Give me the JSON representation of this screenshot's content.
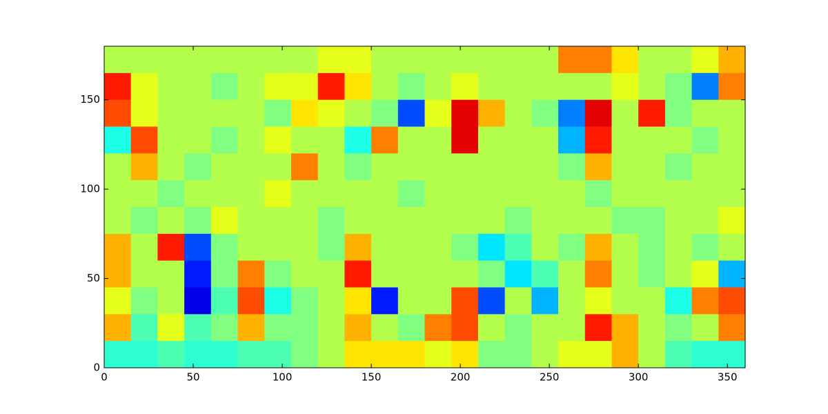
{
  "chart_data": {
    "type": "heatmap",
    "colormap": "jet",
    "clim": [
      0,
      1
    ],
    "xlim": [
      0,
      360
    ],
    "ylim": [
      0,
      180
    ],
    "xticks": [
      0,
      50,
      100,
      150,
      200,
      250,
      300,
      350
    ],
    "yticks": [
      0,
      50,
      100,
      150
    ],
    "values": [
      [
        0.55,
        0.55,
        0.55,
        0.55,
        0.55,
        0.55,
        0.55,
        0.55,
        0.6,
        0.6,
        0.55,
        0.55,
        0.55,
        0.55,
        0.55,
        0.55,
        0.55,
        0.75,
        0.75,
        0.65,
        0.55,
        0.55,
        0.6,
        0.7
      ],
      [
        0.85,
        0.6,
        0.55,
        0.55,
        0.5,
        0.55,
        0.6,
        0.6,
        0.85,
        0.65,
        0.55,
        0.5,
        0.55,
        0.6,
        0.55,
        0.55,
        0.55,
        0.55,
        0.55,
        0.6,
        0.55,
        0.5,
        0.25,
        0.75
      ],
      [
        0.8,
        0.6,
        0.55,
        0.55,
        0.55,
        0.55,
        0.5,
        0.65,
        0.6,
        0.55,
        0.5,
        0.2,
        0.6,
        0.9,
        0.7,
        0.55,
        0.5,
        0.25,
        0.9,
        0.55,
        0.85,
        0.5,
        0.55,
        0.55
      ],
      [
        0.4,
        0.8,
        0.55,
        0.55,
        0.5,
        0.55,
        0.6,
        0.55,
        0.55,
        0.4,
        0.75,
        0.55,
        0.55,
        0.9,
        0.55,
        0.55,
        0.55,
        0.3,
        0.85,
        0.55,
        0.55,
        0.55,
        0.5,
        0.55
      ],
      [
        0.55,
        0.7,
        0.55,
        0.5,
        0.55,
        0.55,
        0.55,
        0.75,
        0.55,
        0.5,
        0.55,
        0.55,
        0.55,
        0.55,
        0.55,
        0.55,
        0.55,
        0.5,
        0.7,
        0.55,
        0.55,
        0.5,
        0.55,
        0.55
      ],
      [
        0.55,
        0.55,
        0.5,
        0.55,
        0.55,
        0.55,
        0.6,
        0.55,
        0.55,
        0.55,
        0.55,
        0.5,
        0.55,
        0.55,
        0.55,
        0.55,
        0.55,
        0.55,
        0.5,
        0.55,
        0.55,
        0.55,
        0.55,
        0.55
      ],
      [
        0.55,
        0.5,
        0.55,
        0.5,
        0.6,
        0.55,
        0.55,
        0.55,
        0.5,
        0.55,
        0.55,
        0.55,
        0.55,
        0.55,
        0.55,
        0.5,
        0.55,
        0.55,
        0.55,
        0.5,
        0.5,
        0.55,
        0.55,
        0.6
      ],
      [
        0.7,
        0.55,
        0.85,
        0.2,
        0.5,
        0.55,
        0.55,
        0.55,
        0.5,
        0.7,
        0.55,
        0.55,
        0.55,
        0.5,
        0.35,
        0.45,
        0.55,
        0.5,
        0.7,
        0.55,
        0.5,
        0.55,
        0.5,
        0.55
      ],
      [
        0.7,
        0.55,
        0.55,
        0.15,
        0.5,
        0.75,
        0.5,
        0.55,
        0.55,
        0.85,
        0.55,
        0.55,
        0.55,
        0.55,
        0.5,
        0.35,
        0.45,
        0.55,
        0.75,
        0.55,
        0.5,
        0.55,
        0.6,
        0.3
      ],
      [
        0.6,
        0.5,
        0.55,
        0.1,
        0.45,
        0.8,
        0.4,
        0.5,
        0.55,
        0.65,
        0.15,
        0.55,
        0.55,
        0.8,
        0.2,
        0.55,
        0.3,
        0.55,
        0.6,
        0.55,
        0.55,
        0.4,
        0.75,
        0.8
      ],
      [
        0.7,
        0.45,
        0.6,
        0.45,
        0.5,
        0.7,
        0.5,
        0.5,
        0.55,
        0.7,
        0.55,
        0.5,
        0.75,
        0.8,
        0.55,
        0.5,
        0.55,
        0.55,
        0.85,
        0.7,
        0.55,
        0.5,
        0.55,
        0.75
      ],
      [
        0.42,
        0.42,
        0.45,
        0.42,
        0.42,
        0.45,
        0.45,
        0.5,
        0.55,
        0.65,
        0.65,
        0.65,
        0.6,
        0.65,
        0.5,
        0.5,
        0.55,
        0.6,
        0.6,
        0.7,
        0.55,
        0.45,
        0.42,
        0.42
      ]
    ]
  }
}
